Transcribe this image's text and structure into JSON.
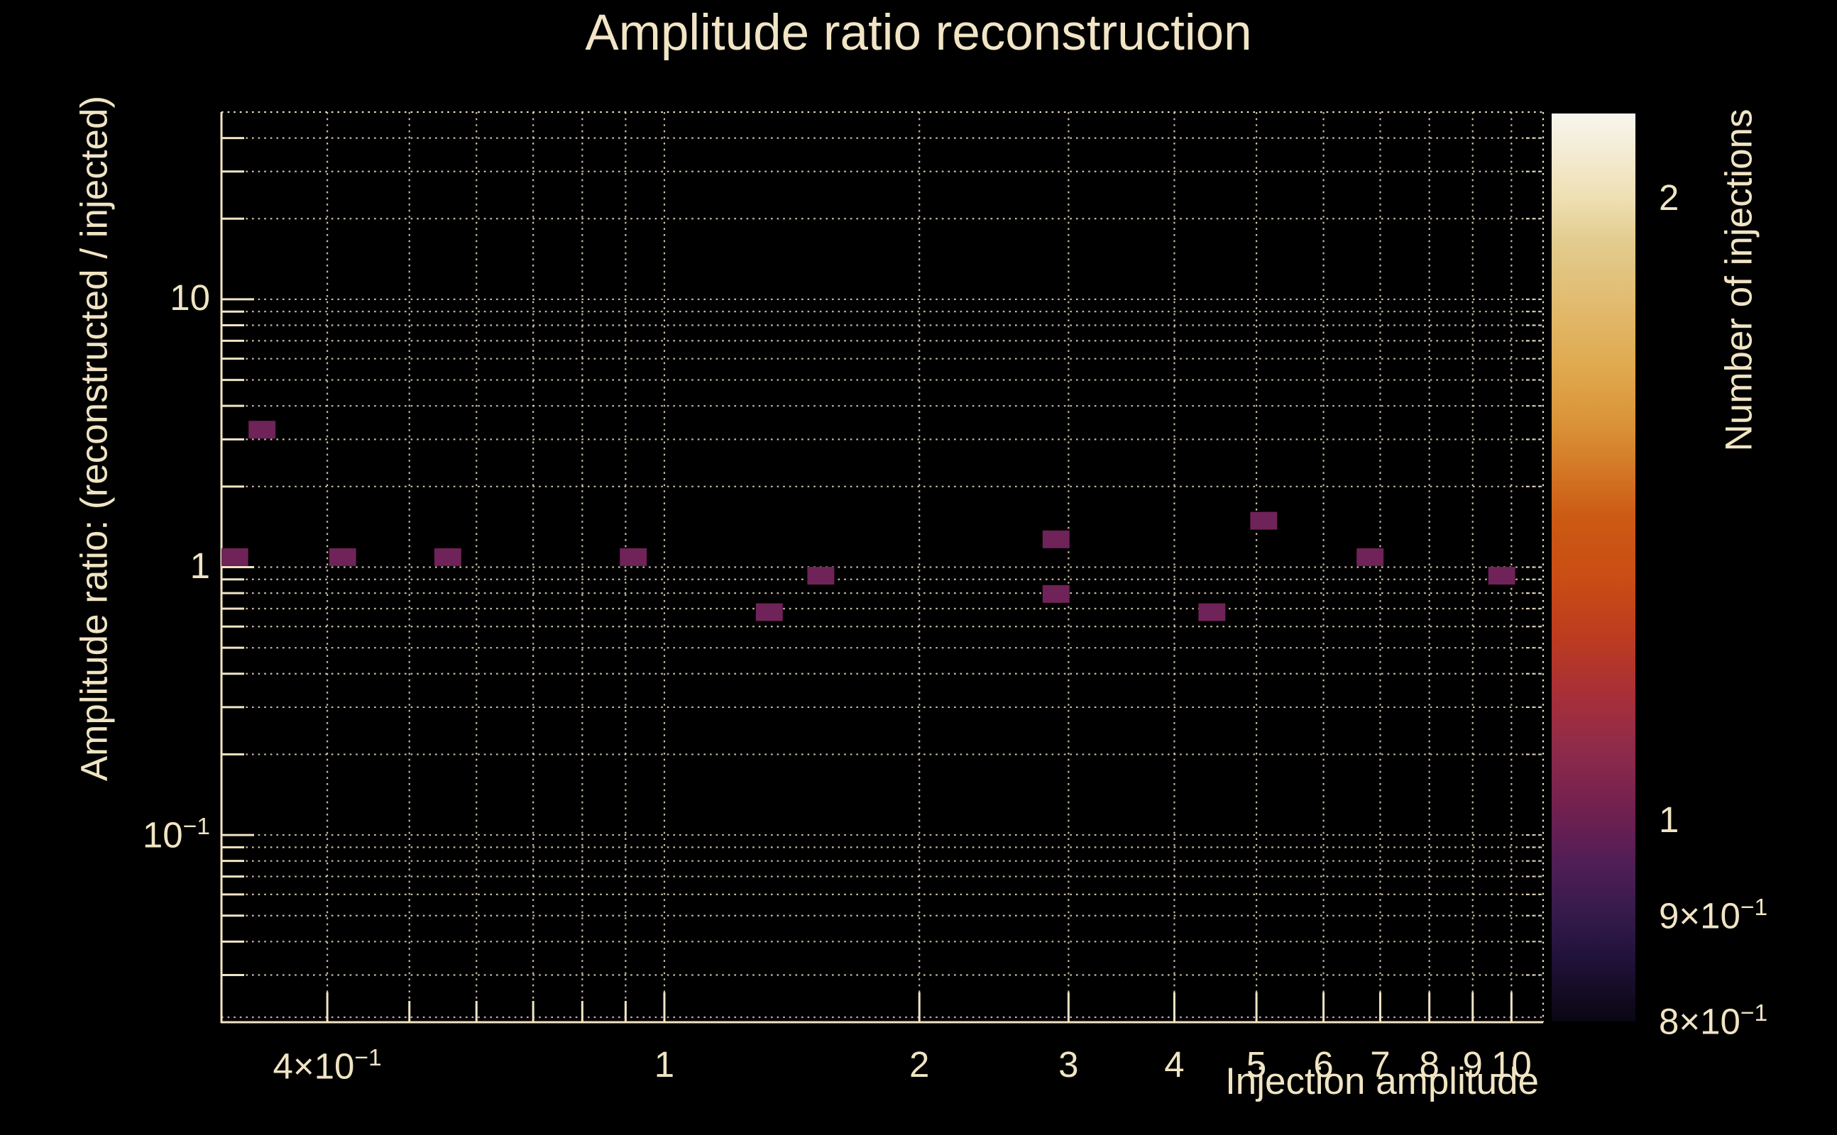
{
  "title": "Amplitude ratio reconstruction",
  "axes": {
    "x": {
      "title": "Injection amplitude"
    },
    "y": {
      "title": "Amplitude ratio: (reconstructed / injected)"
    },
    "z": {
      "title": "Number of injections"
    }
  },
  "colors": {
    "background": "#000000",
    "text": "#f0e4c4",
    "grid": "#ece0c2",
    "frame": "#f0e4c4",
    "bin": "#6f2358",
    "colorbar_tick": "#151515"
  },
  "chart_data": {
    "type": "heatmap",
    "title": "Amplitude ratio reconstruction",
    "xlabel": "Injection amplitude",
    "ylabel": "Amplitude ratio: (reconstructed / injected)",
    "zlabel": "Number of injections",
    "x_scale": "log",
    "y_scale": "log",
    "z_scale": "log",
    "x_range": [
      0.3,
      10.9
    ],
    "y_range": [
      0.02,
      50
    ],
    "z_range": [
      0.8,
      2.2
    ],
    "grid": true,
    "legend_position": "right-colorbar",
    "bin_half_width_dex_x": 0.0159,
    "bin_half_width_dex_y": 0.0331,
    "points": [
      {
        "x": 0.311,
        "y": 1.09,
        "count": 1
      },
      {
        "x": 0.335,
        "y": 3.26,
        "count": 1
      },
      {
        "x": 0.417,
        "y": 1.09,
        "count": 1
      },
      {
        "x": 0.555,
        "y": 1.09,
        "count": 1
      },
      {
        "x": 0.919,
        "y": 1.09,
        "count": 1
      },
      {
        "x": 1.33,
        "y": 0.679,
        "count": 1
      },
      {
        "x": 1.53,
        "y": 0.929,
        "count": 1
      },
      {
        "x": 2.9,
        "y": 1.27,
        "count": 1
      },
      {
        "x": 2.9,
        "y": 0.794,
        "count": 1
      },
      {
        "x": 4.43,
        "y": 0.679,
        "count": 1
      },
      {
        "x": 5.1,
        "y": 1.49,
        "count": 1
      },
      {
        "x": 6.81,
        "y": 1.09,
        "count": 1
      },
      {
        "x": 9.74,
        "y": 0.929,
        "count": 1
      }
    ],
    "x_grid": [
      0.4,
      0.5,
      0.6,
      0.7,
      0.8,
      0.9,
      1,
      2,
      3,
      4,
      5,
      6,
      7,
      8,
      9,
      10
    ],
    "y_grid": [
      0.03,
      0.04,
      0.05,
      0.06,
      0.07,
      0.08,
      0.09,
      0.1,
      0.2,
      0.3,
      0.4,
      0.5,
      0.6,
      0.7,
      0.8,
      0.9,
      1,
      2,
      3,
      4,
      5,
      6,
      7,
      8,
      9,
      10,
      20,
      30,
      40
    ],
    "x_ticks": [
      {
        "v": 0.4,
        "base": "4×10",
        "exp": "−1"
      },
      {
        "v": 1,
        "base": "1",
        "exp": ""
      },
      {
        "v": 2,
        "base": "2",
        "exp": ""
      },
      {
        "v": 3,
        "base": "3",
        "exp": ""
      },
      {
        "v": 4,
        "base": "4",
        "exp": ""
      },
      {
        "v": 5,
        "base": "5",
        "exp": ""
      },
      {
        "v": 6,
        "base": "6",
        "exp": ""
      },
      {
        "v": 7,
        "base": "7",
        "exp": ""
      },
      {
        "v": 8,
        "base": "8",
        "exp": ""
      },
      {
        "v": 9,
        "base": "9",
        "exp": ""
      },
      {
        "v": 10,
        "base": "10",
        "exp": ""
      }
    ],
    "y_ticks": [
      {
        "v": 10,
        "base": "10",
        "exp": ""
      },
      {
        "v": 1,
        "base": "1",
        "exp": ""
      },
      {
        "v": 0.1,
        "base": "10",
        "exp": "−1"
      }
    ],
    "z_ticks": [
      {
        "v": 2,
        "base": "2",
        "exp": ""
      },
      {
        "v": 1,
        "base": "1",
        "exp": ""
      },
      {
        "v": 0.9,
        "base": "9×10",
        "exp": "−1"
      },
      {
        "v": 0.8,
        "base": "8×10",
        "exp": "−1"
      }
    ],
    "colorbar_stops": [
      [
        0.0,
        "#f8f5ee"
      ],
      [
        0.095,
        "#eedfb2"
      ],
      [
        0.14,
        "#e3cc8f"
      ],
      [
        0.28,
        "#e0a94e"
      ],
      [
        0.35,
        "#d98f35"
      ],
      [
        0.445,
        "#cc5a13"
      ],
      [
        0.516,
        "#c94c15"
      ],
      [
        0.578,
        "#bc3b20"
      ],
      [
        0.64,
        "#a82f38"
      ],
      [
        0.7,
        "#8e2b4a"
      ],
      [
        0.766,
        "#722050"
      ],
      [
        0.828,
        "#4f1e56"
      ],
      [
        0.882,
        "#351a4b"
      ],
      [
        0.93,
        "#20123a"
      ],
      [
        1.0,
        "#0a0612"
      ]
    ]
  }
}
